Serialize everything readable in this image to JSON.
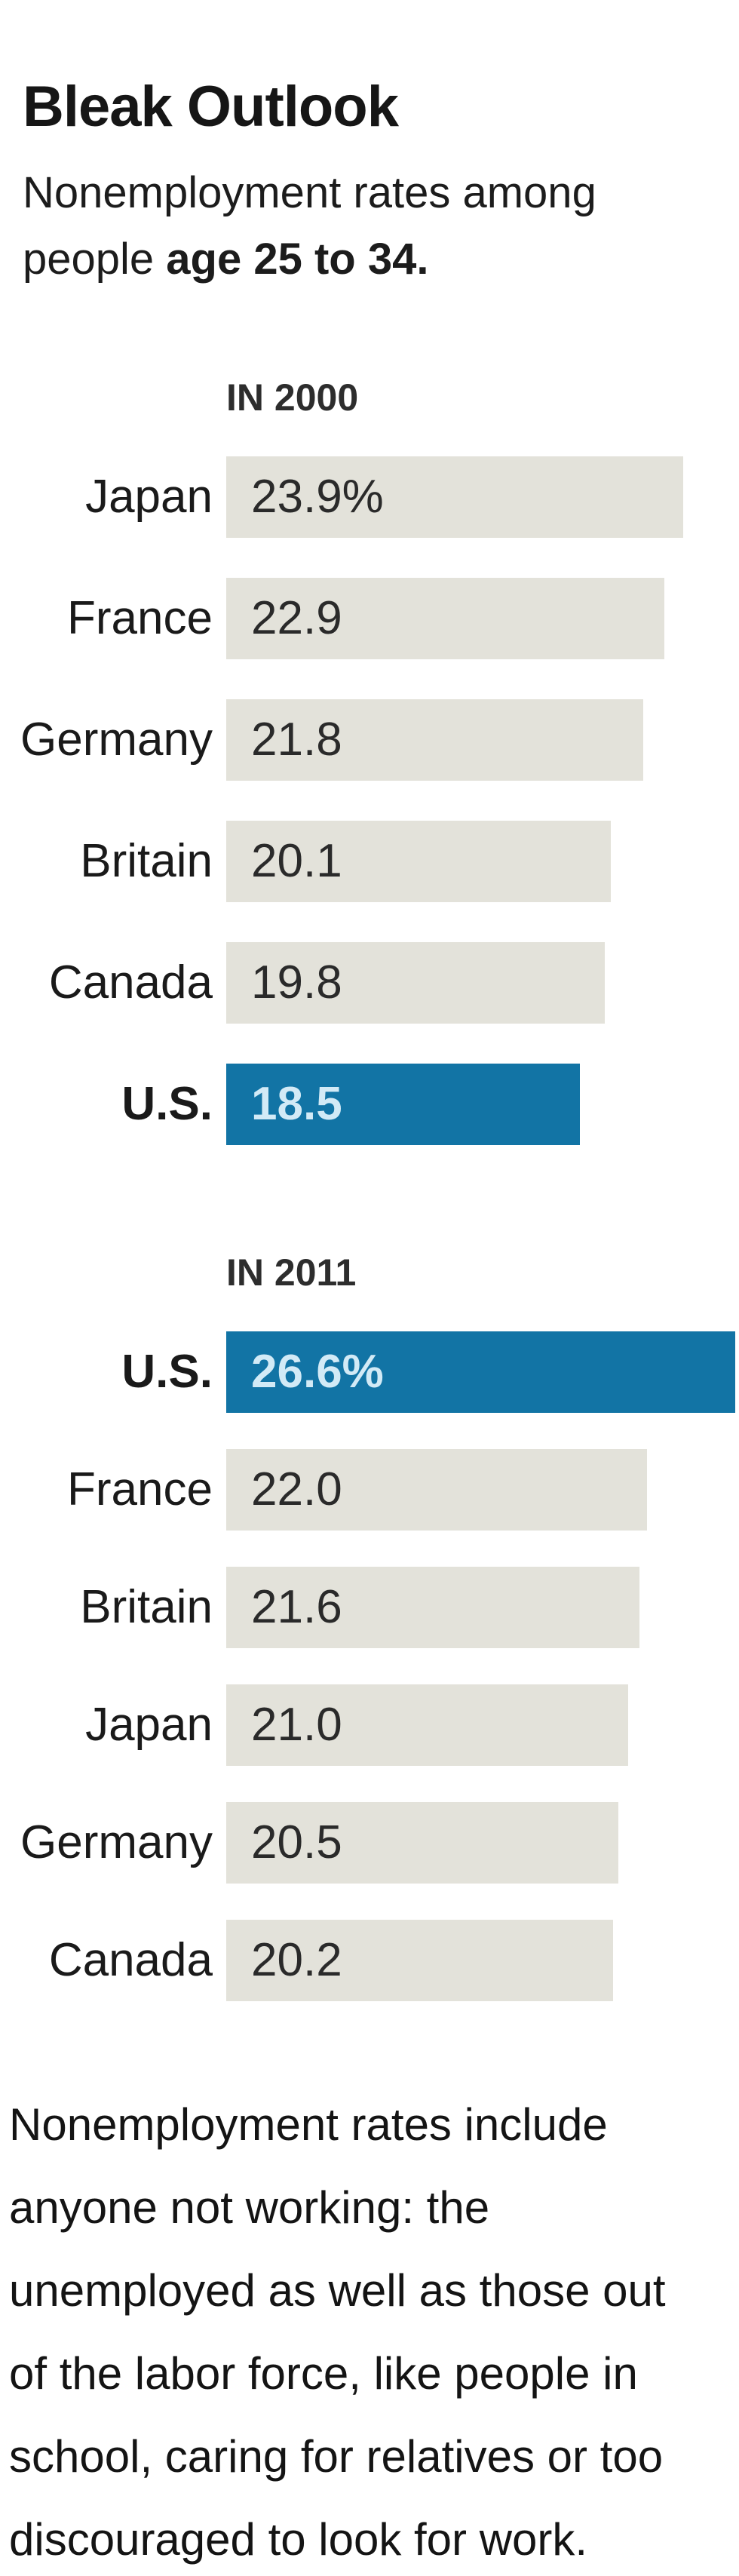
{
  "page_title": "Bleak Outlook",
  "subtitle": {
    "line1": "Nonemployment rates among",
    "line2_regular": "people ",
    "line2_bold": "age 25 to 34."
  },
  "colors": {
    "accent_blue": "#1274a5",
    "bar_gray": "#e3e2da",
    "value_text_on_blue": "#d2eaf6",
    "value_text_on_gray": "#2a2a2a"
  },
  "chart_data": [
    {
      "type": "bar",
      "title": "IN 2000",
      "orientation": "horizontal",
      "unit": "percent",
      "xlim": [
        0,
        26.6
      ],
      "grid": false,
      "categories": [
        "Japan",
        "France",
        "Germany",
        "Britain",
        "Canada",
        "U.S."
      ],
      "values": [
        23.9,
        22.9,
        21.8,
        20.1,
        19.8,
        18.5
      ],
      "value_labels": [
        "23.9%",
        "22.9",
        "21.8",
        "20.1",
        "19.8",
        "18.5"
      ],
      "highlight_category": "U.S."
    },
    {
      "type": "bar",
      "title": "IN 2011",
      "orientation": "horizontal",
      "unit": "percent",
      "xlim": [
        0,
        26.6
      ],
      "grid": false,
      "categories": [
        "U.S.",
        "France",
        "Britain",
        "Japan",
        "Germany",
        "Canada"
      ],
      "values": [
        26.6,
        22.0,
        21.6,
        21.0,
        20.5,
        20.2
      ],
      "value_labels": [
        "26.6%",
        "22.0",
        "21.6",
        "21.0",
        "20.5",
        "20.2"
      ],
      "highlight_category": "U.S."
    }
  ],
  "footnote_lines": [
    "Nonemployment rates include",
    "anyone not working: the",
    "unemployed as well as those out",
    "of the labor force, like people in",
    "school, caring for relatives or too",
    "discouraged to look for work."
  ]
}
